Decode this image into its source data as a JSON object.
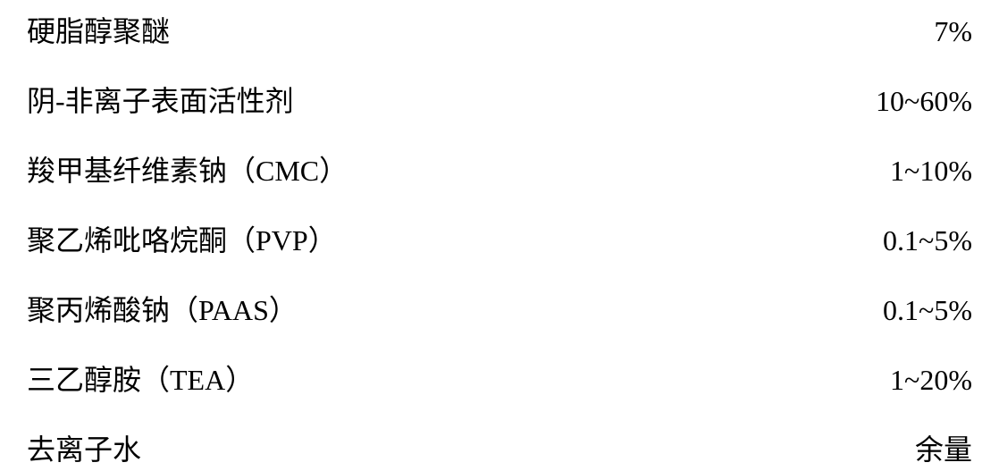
{
  "rows": [
    {
      "label": "硬脂醇聚醚",
      "value": "7%"
    },
    {
      "label": "阴-非离子表面活性剂",
      "value": "10~60%"
    },
    {
      "label": "羧甲基纤维素钠（CMC）",
      "value": "1~10%"
    },
    {
      "label": "聚乙烯吡咯烷酮（PVP）",
      "value": "0.1~5%"
    },
    {
      "label": "聚丙烯酸钠（PAAS）",
      "value": "0.1~5%"
    },
    {
      "label": "三乙醇胺（TEA）",
      "value": "1~20%"
    },
    {
      "label": "去离子水",
      "value": "余量"
    }
  ],
  "style": {
    "background_color": "#ffffff",
    "text_color": "#000000",
    "font_size": 32,
    "font_family": "SimSun",
    "row_spacing": 32
  }
}
